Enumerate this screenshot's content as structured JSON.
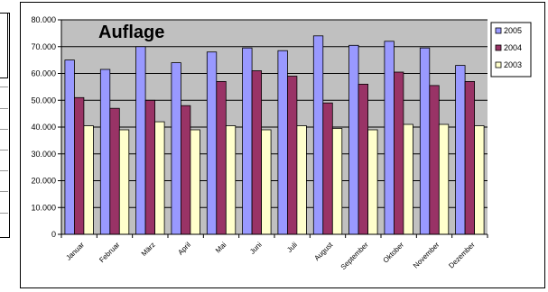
{
  "chart_data": {
    "type": "bar",
    "title": "Auflage",
    "categories": [
      "Januar",
      "Februar",
      "März",
      "April",
      "Mai",
      "Juni",
      "Juli",
      "August",
      "September",
      "Oktober",
      "November",
      "Dezember"
    ],
    "series": [
      {
        "name": "2005",
        "color": "#9999FF",
        "values": [
          65000,
          61500,
          70000,
          64000,
          68000,
          69500,
          68500,
          74000,
          70500,
          72000,
          69500,
          63000
        ]
      },
      {
        "name": "2004",
        "color": "#993366",
        "values": [
          51000,
          47000,
          50000,
          48000,
          57000,
          61000,
          59000,
          49000,
          56000,
          60500,
          55500,
          57000
        ]
      },
      {
        "name": "2003",
        "color": "#FFFFCC",
        "values": [
          40500,
          39000,
          42000,
          39000,
          40500,
          39000,
          40500,
          39500,
          39000,
          41000,
          41000,
          40500
        ]
      }
    ],
    "ylim": [
      0,
      80000
    ],
    "yticks": [
      "0",
      "10.000",
      "20.000",
      "30.000",
      "40.000",
      "50.000",
      "60.000",
      "70.000",
      "80.000"
    ],
    "grid": true,
    "legend": "top-right",
    "plot_background": "#C0C0C0"
  }
}
